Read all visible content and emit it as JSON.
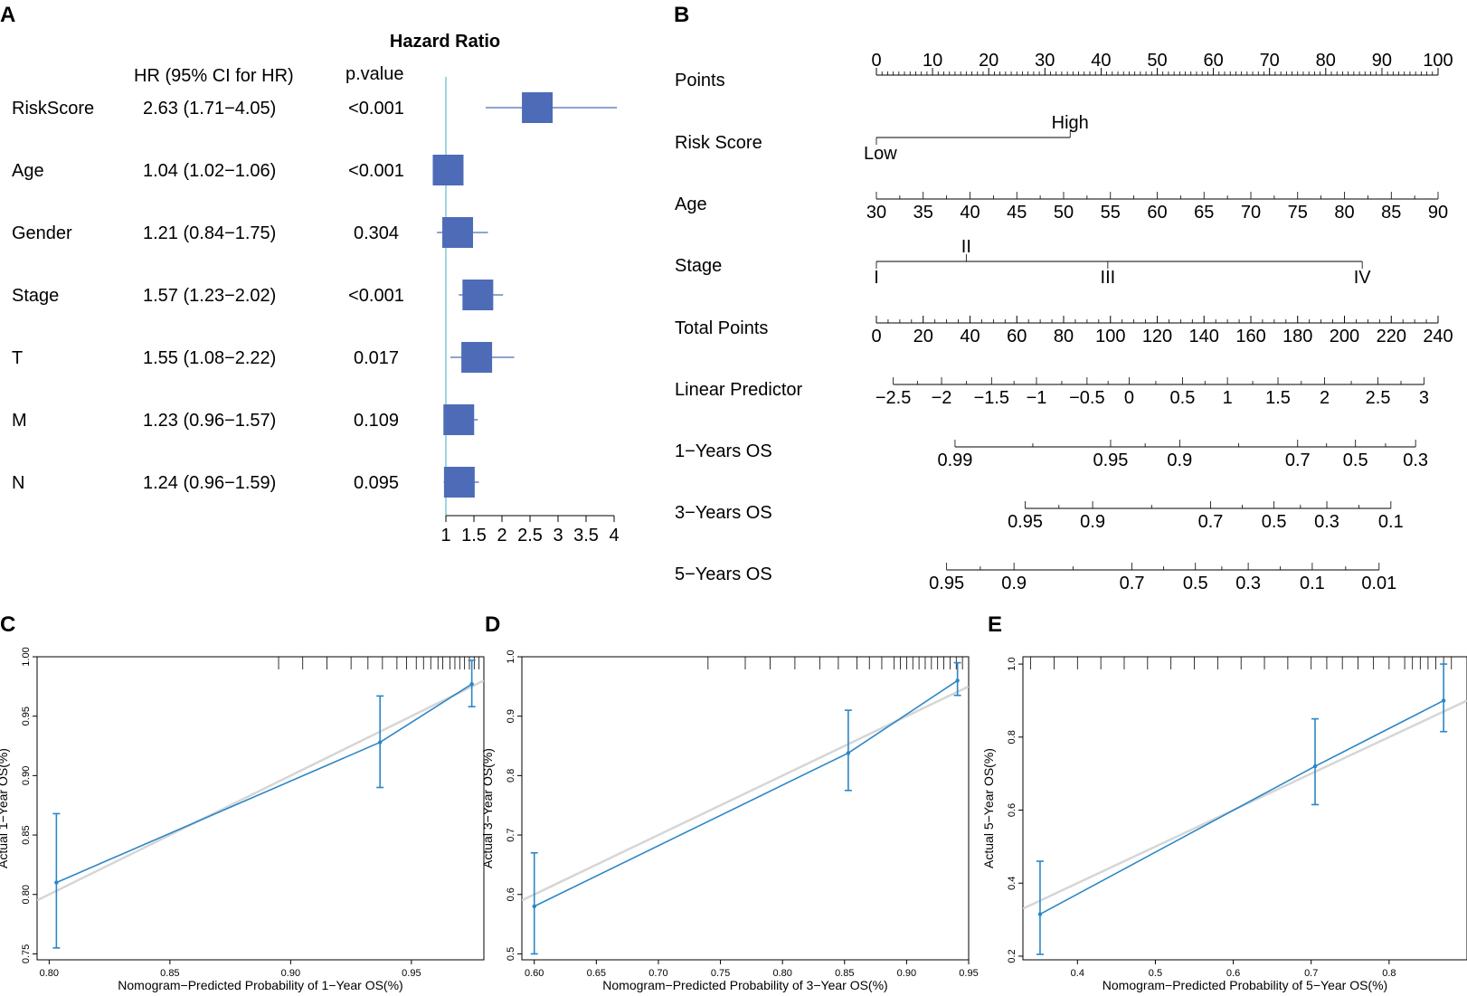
{
  "colors": {
    "box": "#4E6BB7",
    "refline": "#7FC8D4",
    "calib": "#2B86C5",
    "ideal": "#D6D6D6",
    "axis": "#000000"
  },
  "panels": {
    "a": "A",
    "b": "B",
    "c": "C",
    "d": "D",
    "e": "E"
  },
  "chart_data": [
    {
      "panel": "A",
      "type": "forest",
      "title": "Hazard Ratio",
      "col_hr": "HR (95% CI for HR)",
      "col_p": "p.value",
      "xlim": [
        1,
        4
      ],
      "xticks": [
        1,
        1.5,
        2,
        2.5,
        3,
        3.5,
        4
      ],
      "xtick_labels": [
        "1",
        "1.5",
        "2",
        "2.5",
        "3",
        "3.5",
        "4"
      ],
      "ref_value": 1,
      "rows": [
        {
          "name": "RiskScore",
          "hr": 2.63,
          "lo": 1.71,
          "hi": 4.05,
          "hr_text": "2.63 (1.71−4.05)",
          "p": "<0.001"
        },
        {
          "name": "Age",
          "hr": 1.04,
          "lo": 1.02,
          "hi": 1.06,
          "hr_text": "1.04 (1.02−1.06)",
          "p": "<0.001"
        },
        {
          "name": "Gender",
          "hr": 1.21,
          "lo": 0.84,
          "hi": 1.75,
          "hr_text": "1.21 (0.84−1.75)",
          "p": "0.304"
        },
        {
          "name": "Stage",
          "hr": 1.57,
          "lo": 1.23,
          "hi": 2.02,
          "hr_text": "1.57 (1.23−2.02)",
          "p": "<0.001"
        },
        {
          "name": "T",
          "hr": 1.55,
          "lo": 1.08,
          "hi": 2.22,
          "hr_text": "1.55 (1.08−2.22)",
          "p": "0.017"
        },
        {
          "name": "M",
          "hr": 1.23,
          "lo": 0.96,
          "hi": 1.57,
          "hr_text": "1.23 (0.96−1.57)",
          "p": "0.109"
        },
        {
          "name": "N",
          "hr": 1.24,
          "lo": 0.96,
          "hi": 1.59,
          "hr_text": "1.24 (0.96−1.59)",
          "p": "0.095"
        }
      ]
    },
    {
      "panel": "B",
      "type": "nomogram",
      "points_range": [
        0,
        100
      ],
      "rows": [
        {
          "name": "Points",
          "kind": "axis",
          "ticks": [
            {
              "label": "0",
              "pts": 0
            },
            {
              "label": "10",
              "pts": 10
            },
            {
              "label": "20",
              "pts": 20
            },
            {
              "label": "30",
              "pts": 30
            },
            {
              "label": "40",
              "pts": 40
            },
            {
              "label": "50",
              "pts": 50
            },
            {
              "label": "60",
              "pts": 60
            },
            {
              "label": "70",
              "pts": 70
            },
            {
              "label": "80",
              "pts": 80
            },
            {
              "label": "90",
              "pts": 90
            },
            {
              "label": "100",
              "pts": 100
            }
          ]
        },
        {
          "name": "Risk Score",
          "kind": "categorical",
          "ticks": [
            {
              "label": "Low",
              "pts": 0,
              "pos": "below"
            },
            {
              "label": "High",
              "pts": 34.5,
              "pos": "above"
            }
          ]
        },
        {
          "name": "Age",
          "kind": "axis",
          "ticks": [
            {
              "label": "30",
              "pts": 0
            },
            {
              "label": "35",
              "pts": 8.33
            },
            {
              "label": "40",
              "pts": 16.67
            },
            {
              "label": "45",
              "pts": 25
            },
            {
              "label": "50",
              "pts": 33.33
            },
            {
              "label": "55",
              "pts": 41.67
            },
            {
              "label": "60",
              "pts": 50
            },
            {
              "label": "65",
              "pts": 58.33
            },
            {
              "label": "70",
              "pts": 66.67
            },
            {
              "label": "75",
              "pts": 75
            },
            {
              "label": "80",
              "pts": 83.33
            },
            {
              "label": "85",
              "pts": 91.67
            },
            {
              "label": "90",
              "pts": 100
            }
          ]
        },
        {
          "name": "Stage",
          "kind": "categorical",
          "ticks": [
            {
              "label": "I",
              "pts": 0,
              "pos": "below"
            },
            {
              "label": "II",
              "pts": 16,
              "pos": "above"
            },
            {
              "label": "III",
              "pts": 41.2,
              "pos": "below"
            },
            {
              "label": "IV",
              "pts": 86.5,
              "pos": "below"
            }
          ]
        },
        {
          "name": "Total Points",
          "kind": "axis",
          "ticks": [
            {
              "label": "0",
              "pts": 0
            },
            {
              "label": "20",
              "pts": 8.33
            },
            {
              "label": "40",
              "pts": 16.67
            },
            {
              "label": "60",
              "pts": 25
            },
            {
              "label": "80",
              "pts": 33.33
            },
            {
              "label": "100",
              "pts": 41.67
            },
            {
              "label": "120",
              "pts": 50
            },
            {
              "label": "140",
              "pts": 58.33
            },
            {
              "label": "160",
              "pts": 66.67
            },
            {
              "label": "180",
              "pts": 75
            },
            {
              "label": "200",
              "pts": 83.33
            },
            {
              "label": "220",
              "pts": 91.67
            },
            {
              "label": "240",
              "pts": 100
            }
          ]
        },
        {
          "name": "Linear Predictor",
          "kind": "axis",
          "ticks": [
            {
              "label": "−2.5",
              "pts": 3
            },
            {
              "label": "−2",
              "pts": 11.6
            },
            {
              "label": "−1.5",
              "pts": 20.5
            },
            {
              "label": "−1",
              "pts": 28.5
            },
            {
              "label": "−0.5",
              "pts": 37.5
            },
            {
              "label": "0",
              "pts": 45
            },
            {
              "label": "0.5",
              "pts": 54.5
            },
            {
              "label": "1",
              "pts": 62.5
            },
            {
              "label": "1.5",
              "pts": 71.5
            },
            {
              "label": "2",
              "pts": 79.8
            },
            {
              "label": "2.5",
              "pts": 89.3
            },
            {
              "label": "3",
              "pts": 97.5
            }
          ]
        },
        {
          "name": "1−Years OS",
          "kind": "axis",
          "ticks": [
            {
              "label": "0.99",
              "pts": 14
            },
            {
              "label": "0.95",
              "pts": 41.7
            },
            {
              "label": "0.9",
              "pts": 54
            },
            {
              "label": "0.7",
              "pts": 75
            },
            {
              "label": "0.5",
              "pts": 85.3
            },
            {
              "label": "0.3",
              "pts": 96
            }
          ]
        },
        {
          "name": "3−Years OS",
          "kind": "axis",
          "ticks": [
            {
              "label": "0.95",
              "pts": 26.5
            },
            {
              "label": "0.9",
              "pts": 38.5
            },
            {
              "label": "0.7",
              "pts": 59.5
            },
            {
              "label": "0.5",
              "pts": 70.8
            },
            {
              "label": "0.3",
              "pts": 80.2
            },
            {
              "label": "0.1",
              "pts": 91.6
            }
          ]
        },
        {
          "name": "5−Years OS",
          "kind": "axis",
          "ticks": [
            {
              "label": "0.95",
              "pts": 12.5
            },
            {
              "label": "0.9",
              "pts": 24.5
            },
            {
              "label": "0.7",
              "pts": 45.5
            },
            {
              "label": "0.5",
              "pts": 56.8
            },
            {
              "label": "0.3",
              "pts": 66.2
            },
            {
              "label": "0.1",
              "pts": 77.6
            },
            {
              "label": "0.01",
              "pts": 89.5
            }
          ]
        }
      ]
    },
    {
      "panel": "C",
      "type": "line",
      "xlabel": "Nomogram−Predicted Probability of 1−Year OS(%)",
      "ylabel": "Actual 1−Year OS(%)",
      "xlim": [
        0.795,
        0.98
      ],
      "ylim": [
        0.745,
        1.0
      ],
      "xticks": [
        0.8,
        0.85,
        0.9,
        0.95
      ],
      "xtick_labels": [
        "0.80",
        "0.85",
        "0.90",
        "0.95"
      ],
      "yticks": [
        0.75,
        0.8,
        0.85,
        0.9,
        0.95,
        1.0
      ],
      "ytick_labels": [
        "0.75",
        "0.80",
        "0.85",
        "0.90",
        "0.95",
        "1.00"
      ],
      "points": [
        {
          "x": 0.803,
          "y": 0.81,
          "lo": 0.755,
          "hi": 0.868
        },
        {
          "x": 0.937,
          "y": 0.928,
          "lo": 0.89,
          "hi": 0.967
        },
        {
          "x": 0.975,
          "y": 0.977,
          "lo": 0.958,
          "hi": 0.997
        }
      ],
      "ideal": [
        [
          0.795,
          0.795
        ],
        [
          0.98,
          0.98
        ]
      ],
      "rug": [
        0.895,
        0.905,
        0.915,
        0.925,
        0.932,
        0.938,
        0.944,
        0.948,
        0.952,
        0.955,
        0.958,
        0.961,
        0.963,
        0.966,
        0.968,
        0.97,
        0.972,
        0.974,
        0.976,
        0.978
      ]
    },
    {
      "panel": "D",
      "type": "line",
      "xlabel": "Nomogram−Predicted Probability of 3−Year OS(%)",
      "ylabel": "Actual 3−Year OS(%)",
      "xlim": [
        0.59,
        0.95
      ],
      "ylim": [
        0.49,
        1.0
      ],
      "xticks": [
        0.6,
        0.65,
        0.7,
        0.75,
        0.8,
        0.85,
        0.9,
        0.95
      ],
      "xtick_labels": [
        "0.60",
        "0.65",
        "0.70",
        "0.75",
        "0.80",
        "0.85",
        "0.90",
        "0.95"
      ],
      "yticks": [
        0.5,
        0.6,
        0.7,
        0.8,
        0.9,
        1.0
      ],
      "ytick_labels": [
        "0.5",
        "0.6",
        "0.7",
        "0.8",
        "0.9",
        "1.0"
      ],
      "points": [
        {
          "x": 0.6,
          "y": 0.58,
          "lo": 0.5,
          "hi": 0.67
        },
        {
          "x": 0.853,
          "y": 0.838,
          "lo": 0.775,
          "hi": 0.91
        },
        {
          "x": 0.941,
          "y": 0.96,
          "lo": 0.935,
          "hi": 0.99
        }
      ],
      "ideal": [
        [
          0.59,
          0.59
        ],
        [
          0.95,
          0.95
        ]
      ],
      "rug": [
        0.74,
        0.77,
        0.79,
        0.81,
        0.83,
        0.845,
        0.86,
        0.87,
        0.88,
        0.89,
        0.895,
        0.9,
        0.905,
        0.91,
        0.915,
        0.92,
        0.925,
        0.93,
        0.935,
        0.94,
        0.945
      ]
    },
    {
      "panel": "E",
      "type": "line",
      "xlabel": "Nomogram−Predicted Probability of 5−Year OS(%)",
      "ylabel": "Actual 5−Year OS(%)",
      "xlim": [
        0.33,
        0.9
      ],
      "ylim": [
        0.19,
        1.02
      ],
      "xticks": [
        0.4,
        0.5,
        0.6,
        0.7,
        0.8
      ],
      "xtick_labels": [
        "0.4",
        "0.5",
        "0.6",
        "0.7",
        "0.8"
      ],
      "yticks": [
        0.2,
        0.4,
        0.6,
        0.8,
        1.0
      ],
      "ytick_labels": [
        "0.2",
        "0.4",
        "0.6",
        "0.8",
        "1.0"
      ],
      "points": [
        {
          "x": 0.352,
          "y": 0.315,
          "lo": 0.205,
          "hi": 0.46
        },
        {
          "x": 0.705,
          "y": 0.72,
          "lo": 0.615,
          "hi": 0.85
        },
        {
          "x": 0.87,
          "y": 0.9,
          "lo": 0.815,
          "hi": 1.0
        }
      ],
      "ideal": [
        [
          0.33,
          0.33
        ],
        [
          0.9,
          0.9
        ]
      ],
      "rug": [
        0.34,
        0.37,
        0.4,
        0.43,
        0.46,
        0.49,
        0.52,
        0.55,
        0.58,
        0.61,
        0.64,
        0.67,
        0.7,
        0.72,
        0.74,
        0.76,
        0.78,
        0.8,
        0.82,
        0.83,
        0.84,
        0.85,
        0.86,
        0.87,
        0.88
      ]
    }
  ]
}
